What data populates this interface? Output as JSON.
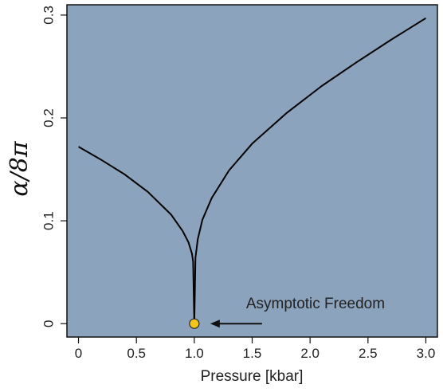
{
  "chart_data": {
    "type": "line",
    "title": "",
    "xlabel": "Pressure [kbar]",
    "ylabel": "α/8π",
    "xlim": [
      -0.1,
      3.1
    ],
    "ylim": [
      -0.013,
      0.31
    ],
    "xticks": [
      0,
      0.5,
      1.0,
      1.5,
      2.0,
      2.5,
      3.0
    ],
    "xtick_labels": [
      "0",
      "0.5",
      "1.0",
      "1.5",
      "2.0",
      "2.5",
      "3.0"
    ],
    "yticks": [
      0,
      0.1,
      0.2,
      0.3
    ],
    "ytick_labels": [
      "0",
      "0.1",
      "0.2",
      "0.3"
    ],
    "grid": false,
    "legend": "none",
    "colors": {
      "plot_background": "#8ca3bd",
      "line": "#000000",
      "marker_fill": "#f5c518",
      "marker_edge": "#333333"
    },
    "series": [
      {
        "values_x": [
          0.0,
          0.2,
          0.4,
          0.6,
          0.8,
          0.9,
          0.95,
          0.98,
          0.99,
          1.0
        ],
        "values_y": [
          0.172,
          0.159,
          0.145,
          0.128,
          0.106,
          0.09,
          0.079,
          0.068,
          0.06,
          0.0
        ]
      },
      {
        "values_x": [
          1.0,
          1.01,
          1.03,
          1.07,
          1.15,
          1.3,
          1.5,
          1.8,
          2.1,
          2.4,
          2.7,
          3.0
        ],
        "values_y": [
          0.0,
          0.064,
          0.082,
          0.101,
          0.122,
          0.149,
          0.175,
          0.205,
          0.231,
          0.254,
          0.276,
          0.297
        ]
      }
    ],
    "points": [
      {
        "x": 1.0,
        "y": 0.0
      }
    ],
    "annotations": [
      {
        "text": "Asymptotic Freedom",
        "arrow_to": {
          "x": 1.0,
          "y": 0.0
        }
      }
    ]
  }
}
